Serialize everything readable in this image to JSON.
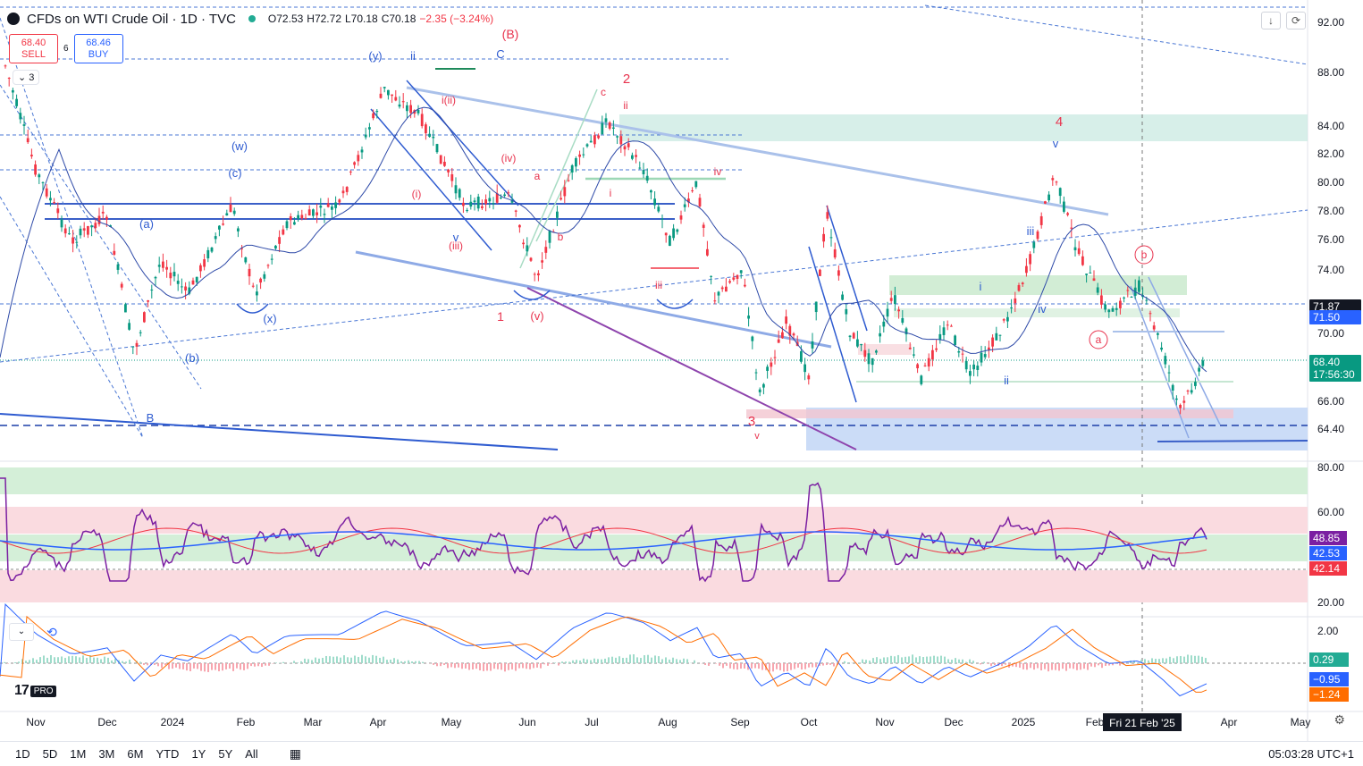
{
  "header": {
    "title": "CFDs on WTI Crude Oil · 1D · TVC",
    "open": "O72.53",
    "high": "H72.72",
    "low": "L70.18",
    "close": "C70.18",
    "change": "−2.35 (−3.24%)"
  },
  "trade": {
    "sell_price": "68.40",
    "sell_label": "SELL",
    "spread": "6",
    "buy_price": "68.46",
    "buy_label": "BUY"
  },
  "collapse_label": "3",
  "price_axis": {
    "ticks": [
      "92.00",
      "88.00",
      "84.00",
      "82.00",
      "80.00",
      "78.00",
      "76.00",
      "74.00",
      "70.00",
      "66.00",
      "64.40"
    ],
    "badges": [
      {
        "text": "71.87",
        "bg": "#131722"
      },
      {
        "text": "71.50",
        "bg": "#2962ff"
      },
      {
        "text": "68.40",
        "bg": "#089981"
      },
      {
        "text": "17:56:30",
        "bg": "#089981"
      }
    ]
  },
  "rsi_axis": {
    "ticks": [
      "80.00",
      "60.00",
      "20.00"
    ],
    "badges": [
      {
        "text": "48.85",
        "bg": "#7b1fa2"
      },
      {
        "text": "42.53",
        "bg": "#2962ff"
      },
      {
        "text": "42.14",
        "bg": "#f23645"
      }
    ]
  },
  "macd_axis": {
    "ticks": [
      "2.00"
    ],
    "badges": [
      {
        "text": "0.29",
        "bg": "#22ab94"
      },
      {
        "text": "−0.95",
        "bg": "#2962ff"
      },
      {
        "text": "−1.24",
        "bg": "#ff6d00"
      }
    ]
  },
  "time_axis": {
    "labels": [
      "Nov",
      "Dec",
      "2024",
      "Feb",
      "Mar",
      "Apr",
      "May",
      "Jun",
      "Jul",
      "Aug",
      "Sep",
      "Oct",
      "Nov",
      "Dec",
      "2025",
      "Feb",
      "Apr",
      "May"
    ],
    "crosshair_label": "Fri 21 Feb '25"
  },
  "wave_labels_blue": [
    "(y)",
    "ii",
    "C",
    "(w)",
    "(c)",
    "(a)",
    "(x)",
    "(b)",
    "B",
    "v",
    "iii",
    "iv",
    "i",
    "ii",
    "v"
  ],
  "wave_labels_red": [
    "(B)",
    "2",
    "c",
    "ii",
    "i(ii)",
    "(iv)",
    "a",
    "iv",
    "i",
    "(i)",
    "b",
    "(iii)",
    "iii",
    "1",
    "(v)",
    "3",
    "v",
    "4",
    "b",
    "a"
  ],
  "bottom": {
    "ranges": [
      "1D",
      "5D",
      "1M",
      "3M",
      "6M",
      "YTD",
      "1Y",
      "5Y",
      "All"
    ],
    "clock": "05:03:28 UTC+1"
  },
  "logo": {
    "pro": "PRO"
  }
}
